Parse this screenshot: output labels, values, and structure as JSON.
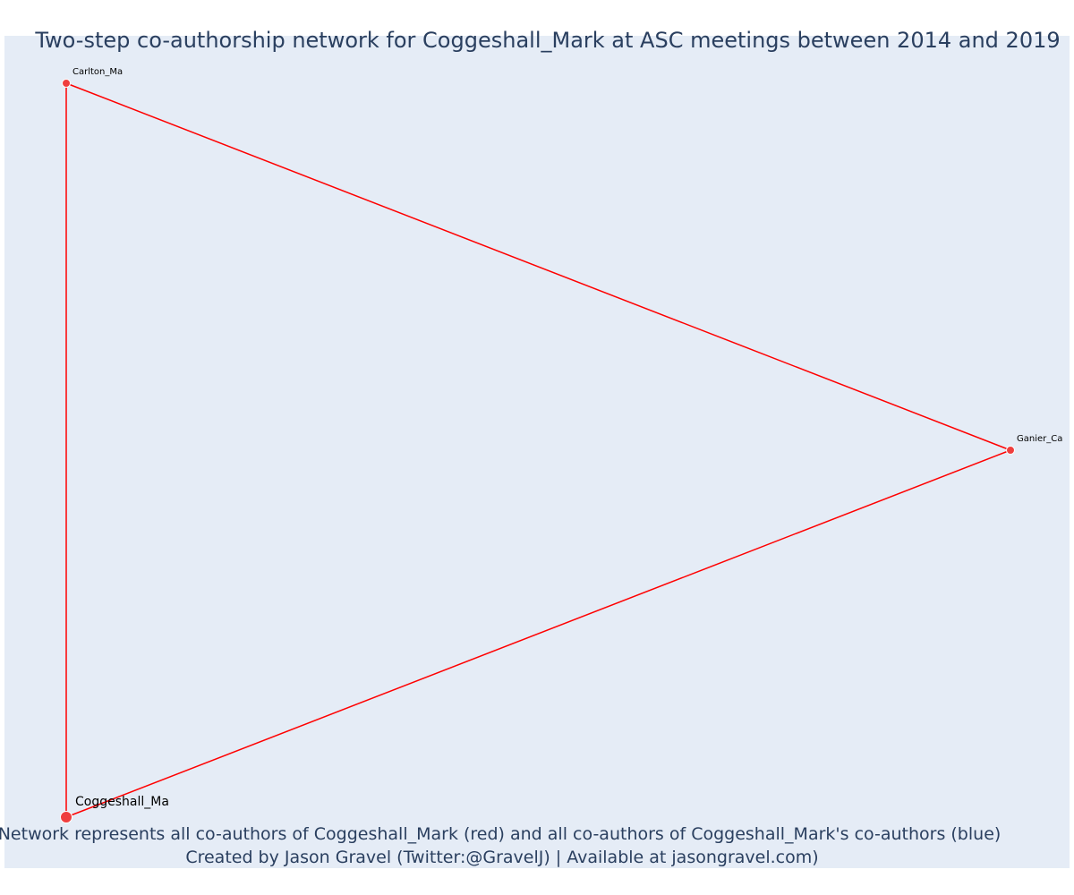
{
  "title": "Two-step co-authorship network for Coggeshall_Mark at ASC meetings between 2014 and 2019",
  "caption": {
    "line1": "Network represents all co-authors of Coggeshall_Mark (red) and all co-authors of Coggeshall_Mark's co-authors (blue)",
    "line2": "Created by Jason Gravel (Twitter:@GravelJ) | Available at jasongravel.com)"
  },
  "colors": {
    "plot_background": "#e5ecf6",
    "edge": "#ff0000",
    "node_fill": "#ef3e3e",
    "node_outline": "#ffffff",
    "title": "#2a3f5f"
  },
  "network": {
    "nodes": [
      {
        "id": "carlton",
        "label": "Carlton_Ma",
        "group": "co-author",
        "focal": false,
        "x": 0.0,
        "y": 1.0
      },
      {
        "id": "ganier",
        "label": "Ganier_Ca",
        "group": "co-author",
        "focal": false,
        "x": 1.0,
        "y": 0.5
      },
      {
        "id": "coggeshall",
        "label": "Coggeshall_Ma",
        "group": "focal",
        "focal": true,
        "x": 0.0,
        "y": 0.0
      }
    ],
    "edges": [
      {
        "source": "carlton",
        "target": "ganier"
      },
      {
        "source": "ganier",
        "target": "coggeshall"
      },
      {
        "source": "coggeshall",
        "target": "carlton"
      }
    ]
  }
}
